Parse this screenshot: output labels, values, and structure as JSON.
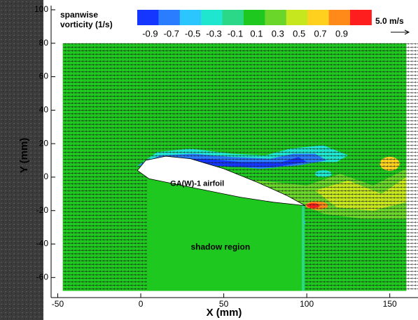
{
  "chart_data": {
    "type": "vector-field",
    "colorbar_title": [
      "spanwise",
      "vorticity (1/s)"
    ],
    "colorbar_levels": [
      -0.9,
      -0.7,
      -0.5,
      -0.3,
      -0.1,
      0.1,
      0.3,
      0.5,
      0.7,
      0.9
    ],
    "colorbar_colors": [
      "#1436ff",
      "#2a7dff",
      "#2cc6ff",
      "#1ee6cf",
      "#2bd888",
      "#1fc81f",
      "#6ad62a",
      "#c6e61e",
      "#ffd01e",
      "#ff8a1a",
      "#ff1e1e"
    ],
    "reference_vector": "5.0 m/s",
    "annotations": [
      "GA(W)-1 airfoil",
      "shadow region"
    ],
    "x_label": "X (mm)",
    "y_label": "Y (mm)",
    "xlim": [
      -54,
      167
    ],
    "ylim": [
      -72,
      102.5
    ],
    "xticks": [
      -50,
      0,
      50,
      100,
      150
    ],
    "yticks": [
      -60,
      -40,
      -20,
      0,
      20,
      40,
      60,
      80,
      100
    ]
  }
}
